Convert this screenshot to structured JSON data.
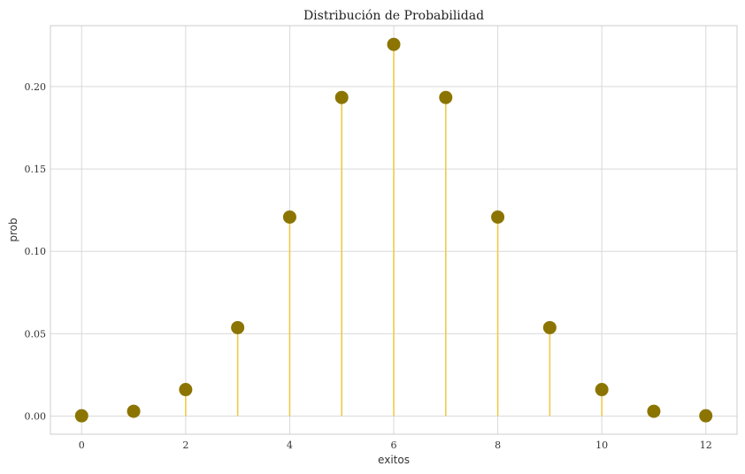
{
  "chart_data": {
    "type": "stem",
    "title": "Distribución de Probabilidad",
    "xlabel": "exitos",
    "ylabel": "prob",
    "xlim": [
      -0.6,
      12.6
    ],
    "ylim": [
      -0.011,
      0.237
    ],
    "xticks": [
      0,
      2,
      4,
      6,
      8,
      10,
      12
    ],
    "xtick_labels": [
      "0",
      "2",
      "4",
      "6",
      "8",
      "10",
      "12"
    ],
    "yticks": [
      0.0,
      0.05,
      0.1,
      0.15,
      0.2
    ],
    "ytick_labels": [
      "0.00",
      "0.05",
      "0.10",
      "0.15",
      "0.20"
    ],
    "grid": true,
    "series": [
      {
        "x": [
          0,
          1,
          2,
          3,
          4,
          5,
          6,
          7,
          8,
          9,
          10,
          11,
          12
        ],
        "y": [
          0.0002,
          0.0029,
          0.0161,
          0.0537,
          0.1208,
          0.1934,
          0.2256,
          0.1934,
          0.1208,
          0.0537,
          0.0161,
          0.0029,
          0.0002
        ]
      }
    ],
    "colors": {
      "marker": "#8B7500",
      "stem": "#F0C94A",
      "grid": "#d9d9d9",
      "frame": "#cccccc"
    }
  }
}
